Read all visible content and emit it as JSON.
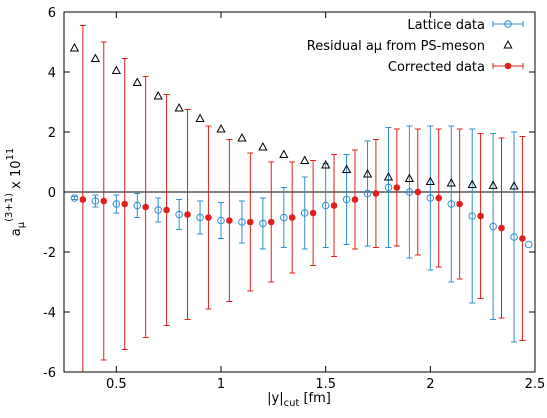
{
  "chart_data": {
    "type": "errorbar",
    "xlabel": [
      "|y|",
      "cut",
      " [fm]"
    ],
    "ylabel": [
      "a",
      "μ",
      "(3+1)",
      " x 10",
      "11"
    ],
    "xlim": [
      0.25,
      2.5
    ],
    "xticks": [
      0.5,
      1,
      1.5,
      2,
      2.5
    ],
    "ylim": [
      -6,
      6
    ],
    "yticks": [
      -6,
      -4,
      -2,
      0,
      2,
      4,
      6
    ],
    "zero_line": true,
    "legend": "top-right",
    "series": [
      {
        "name": "Lattice data",
        "color": "#2a8fd0",
        "marker": "open-circle",
        "x": [
          0.3,
          0.4,
          0.5,
          0.6,
          0.7,
          0.8,
          0.9,
          1.0,
          1.1,
          1.2,
          1.3,
          1.4,
          1.5,
          1.6,
          1.7,
          1.8,
          1.9,
          2.0,
          2.1,
          2.2,
          2.3,
          2.4,
          2.47
        ],
        "values": [
          -0.2,
          -0.3,
          -0.4,
          -0.45,
          -0.6,
          -0.75,
          -0.85,
          -0.95,
          -1.0,
          -1.05,
          -0.85,
          -0.7,
          -0.45,
          -0.25,
          -0.05,
          0.15,
          0.0,
          -0.2,
          -0.4,
          -0.8,
          -1.15,
          -1.5,
          -1.75
        ],
        "errors": [
          0.05,
          0.2,
          0.3,
          0.4,
          0.4,
          0.5,
          0.55,
          0.6,
          0.7,
          0.85,
          1.0,
          1.2,
          1.4,
          1.5,
          1.75,
          2.0,
          2.2,
          2.4,
          2.6,
          2.9,
          3.1,
          3.5,
          null
        ]
      },
      {
        "name": "Residual aμ from PS-meson",
        "color": "#000000",
        "marker": "open-triangle",
        "x": [
          0.3,
          0.4,
          0.5,
          0.6,
          0.7,
          0.8,
          0.9,
          1.0,
          1.1,
          1.2,
          1.3,
          1.4,
          1.5,
          1.6,
          1.7,
          1.8,
          1.9,
          2.0,
          2.1,
          2.2,
          2.3,
          2.4
        ],
        "values": [
          4.8,
          4.45,
          4.05,
          3.65,
          3.2,
          2.8,
          2.45,
          2.1,
          1.8,
          1.5,
          1.25,
          1.05,
          0.9,
          0.75,
          0.6,
          0.5,
          0.45,
          0.35,
          0.3,
          0.25,
          0.22,
          0.2
        ]
      },
      {
        "name": "Corrected data",
        "color": "#e0201b",
        "marker": "filled-circle",
        "x": [
          0.34,
          0.44,
          0.54,
          0.64,
          0.74,
          0.84,
          0.94,
          1.04,
          1.14,
          1.24,
          1.34,
          1.44,
          1.54,
          1.64,
          1.74,
          1.84,
          1.94,
          2.04,
          2.14,
          2.24,
          2.34,
          2.44
        ],
        "values": [
          -0.25,
          -0.3,
          -0.4,
          -0.5,
          -0.6,
          -0.75,
          -0.85,
          -0.95,
          -1.0,
          -1.0,
          -0.85,
          -0.7,
          -0.45,
          -0.25,
          -0.05,
          0.15,
          0.0,
          -0.2,
          -0.4,
          -0.8,
          -1.2,
          -1.55
        ],
        "errors": [
          5.8,
          5.3,
          4.85,
          4.35,
          3.85,
          3.5,
          3.05,
          2.7,
          2.3,
          2.0,
          1.85,
          1.75,
          1.7,
          1.65,
          1.8,
          1.95,
          2.1,
          2.3,
          2.5,
          2.75,
          3.0,
          3.4
        ]
      }
    ]
  }
}
